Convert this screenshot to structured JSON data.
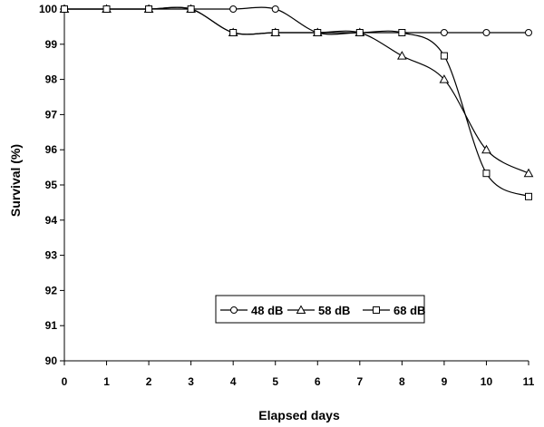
{
  "chart_data": {
    "type": "line",
    "title": "",
    "xlabel": "Elapsed days",
    "ylabel": "Survival (%)",
    "xlim": [
      0,
      11
    ],
    "ylim": [
      90,
      100
    ],
    "x_ticks": [
      "0",
      "1",
      "2",
      "3",
      "4",
      "5",
      "6",
      "7",
      "8",
      "9",
      "10",
      "11"
    ],
    "y_ticks": [
      "90",
      "91",
      "92",
      "93",
      "94",
      "95",
      "96",
      "97",
      "98",
      "99",
      "100"
    ],
    "x": [
      0,
      1,
      2,
      3,
      4,
      5,
      6,
      7,
      8,
      9,
      10,
      11
    ],
    "series": [
      {
        "name": "48 dB",
        "marker": "circle",
        "values": [
          100,
          100,
          100,
          100,
          100,
          100,
          99.33,
          99.33,
          99.33,
          99.33,
          99.33,
          99.33
        ]
      },
      {
        "name": "58 dB",
        "marker": "triangle",
        "values": [
          100,
          100,
          100,
          100,
          99.33,
          99.33,
          99.33,
          99.33,
          98.67,
          98.0,
          96.0,
          95.33
        ]
      },
      {
        "name": "68 dB",
        "marker": "square",
        "values": [
          100,
          100,
          100,
          100,
          99.33,
          99.33,
          99.33,
          99.33,
          99.33,
          98.67,
          95.33,
          94.67
        ]
      }
    ],
    "legend_position": "bottom-center",
    "grid": false
  }
}
